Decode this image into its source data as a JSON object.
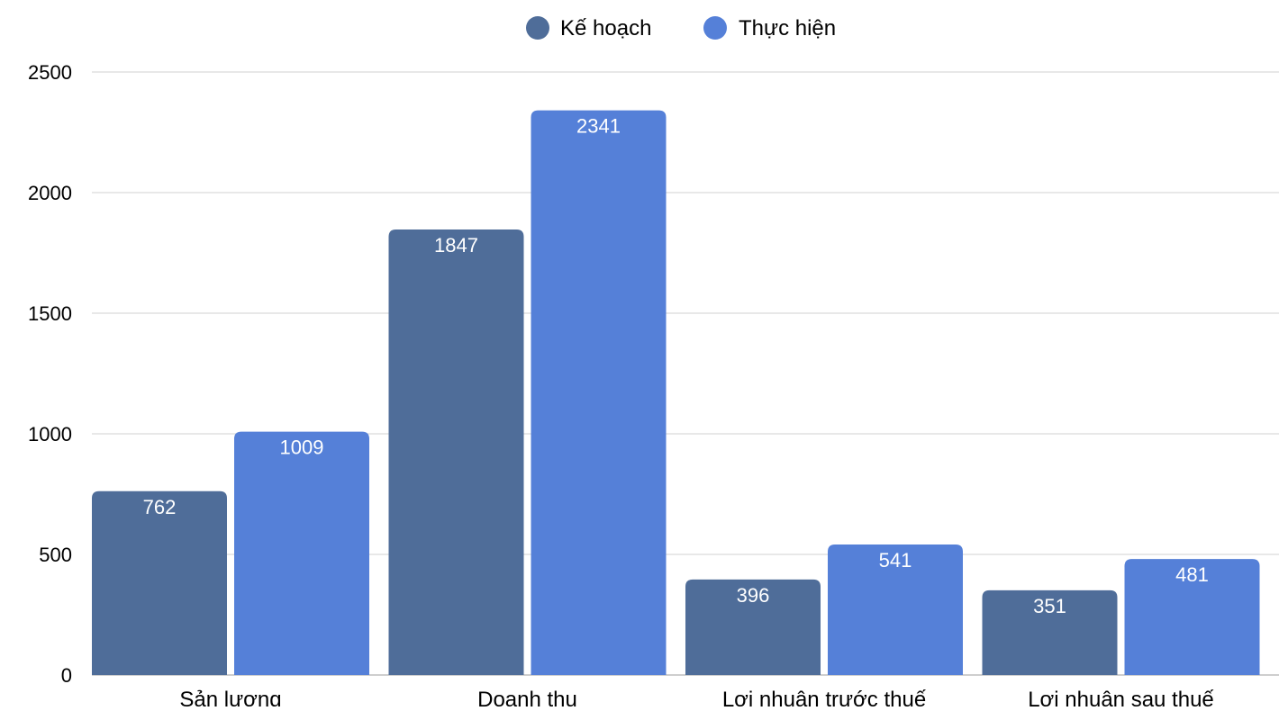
{
  "chart_data": {
    "type": "bar",
    "title": "",
    "xlabel": "",
    "ylabel": "",
    "categories": [
      "Sản lượng",
      "Doanh thu",
      "Lợi nhuận trước thuế",
      "Lợi nhuận sau thuế"
    ],
    "series": [
      {
        "name": "Kế hoạch",
        "color": "#4F6D99",
        "values": [
          762,
          1847,
          396,
          351
        ]
      },
      {
        "name": "Thực hiện",
        "color": "#5580D8",
        "values": [
          1009,
          2341,
          541,
          481
        ]
      }
    ],
    "ylim": [
      0,
      2500
    ],
    "yticks": [
      0,
      500,
      1000,
      1500,
      2000,
      2500
    ],
    "grid": true,
    "legend_position": "top",
    "data_labels": true
  }
}
